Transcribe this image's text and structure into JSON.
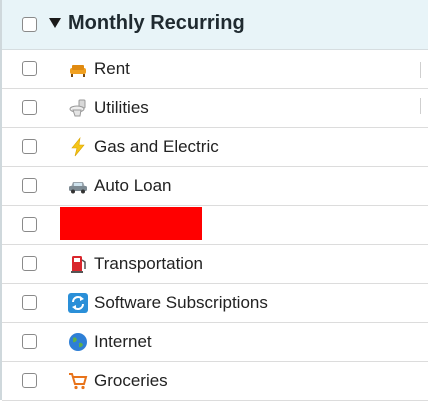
{
  "section": {
    "title": "Monthly Recurring",
    "items": [
      "Rent",
      "Utilities",
      "Gas and Electric",
      "Auto Loan",
      "Transportation",
      "Software Subscriptions",
      "Internet",
      "Groceries"
    ]
  }
}
